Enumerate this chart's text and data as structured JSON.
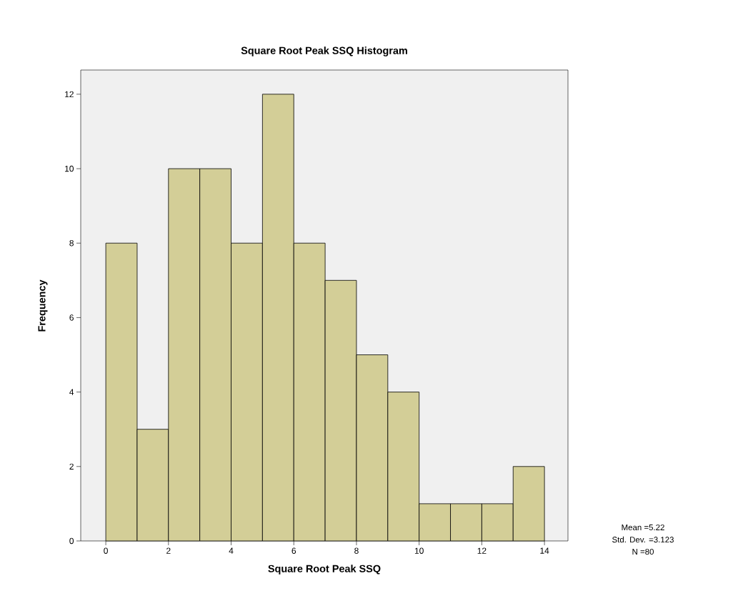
{
  "chart_data": {
    "type": "histogram",
    "title": "Square Root Peak SSQ Histogram",
    "xlabel": "Square Root Peak SSQ",
    "ylabel": "Frequency",
    "bins": [
      0,
      1,
      2,
      3,
      4,
      5,
      6,
      7,
      8,
      9,
      10,
      11,
      12,
      13,
      14
    ],
    "values": [
      8,
      3,
      10,
      10,
      8,
      12,
      8,
      7,
      5,
      4,
      1,
      1,
      1,
      2
    ],
    "color": "#d3ce97",
    "xlim": [
      -0.8,
      14.75
    ],
    "ylim": [
      0,
      12.65
    ],
    "xticks": [
      0,
      2,
      4,
      6,
      8,
      10,
      12,
      14
    ],
    "yticks": [
      0,
      2,
      4,
      6,
      8,
      10,
      12
    ],
    "grid": false,
    "annotations": [
      "Mean =5.22",
      "Std. Dev. =3.123",
      "N =80"
    ]
  }
}
